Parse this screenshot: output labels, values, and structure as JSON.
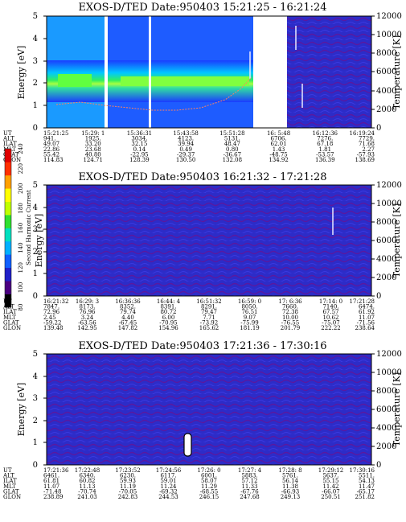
{
  "chart_data": [
    {
      "type": "heatmap",
      "title": "EXOS-D/TED   Date:950403  15:21:25 - 16:21:24",
      "ylabel": "Energy [eV]",
      "y2label": "Temperature [K]",
      "ylim": [
        0,
        5
      ],
      "y2lim": [
        0,
        12000
      ],
      "yticks": [
        "0",
        "1",
        "2",
        "3",
        "4",
        "5"
      ],
      "y2ticks": [
        "0",
        "2000",
        "4000",
        "6000",
        "8000",
        "10000",
        "12000"
      ],
      "band": {
        "center_ev": 2.0,
        "peak_ev_min": 1.4,
        "peak_ev_max": 2.6,
        "note_level_percent": 100
      },
      "data_gaps": [
        [
          "16:01:00",
          "16:07:30"
        ]
      ],
      "table": {
        "rows": [
          {
            "label": "UT",
            "values": [
              "15:21:25",
              "15:29: 1",
              "15:36:31",
              "15:43:58",
              "15:51:28",
              "16: 5:48",
              "16:12:36",
              "16:19:24"
            ]
          },
          {
            "label": "ALT",
            "values": [
              "941.",
              "1925.",
              "3034.",
              "4123.",
              "5131.",
              "6706.",
              "7276.",
              "7729."
            ]
          },
          {
            "label": "ILAT",
            "values": [
              "49.07",
              "33.20",
              "32.15",
              "39.94",
              "48.47",
              "62.01",
              "67.18",
              "71.68"
            ]
          },
          {
            "label": "MLT",
            "values": [
              "22.86",
              "23.68",
              "0.14",
              "0.49",
              "0.80",
              "1.43",
              "1.81",
              "2.27"
            ]
          },
          {
            "label": "GLAT",
            "values": [
              "55.42",
              "40.80",
              "-22.95",
              "-29.37",
              "-36.67",
              "-48.75",
              "-53.57",
              "-57.93"
            ]
          },
          {
            "label": "GLON",
            "values": [
              "114.83",
              "124.71",
              "128.39",
              "130.50",
              "132.08",
              "134.92",
              "136.39",
              "138.69"
            ]
          }
        ]
      }
    },
    {
      "type": "heatmap",
      "title": "EXOS-D/TED   Date:950403  16:21:32 - 17:21:28",
      "ylabel": "Energy [eV]",
      "y2label": "Temperature [K]",
      "ylim": [
        0,
        5
      ],
      "y2lim": [
        0,
        12000
      ],
      "yticks": [
        "0",
        "1",
        "2",
        "3",
        "4",
        "5"
      ],
      "y2ticks": [
        "0",
        "2000",
        "4000",
        "6000",
        "8000",
        "10000",
        "12000"
      ],
      "table": {
        "rows": [
          {
            "label": "UT",
            "values": [
              "16:21:32",
              "16:29: 3",
              "16:36:36",
              "16:44: 4",
              "16:51:32",
              "16:59: 0",
              "17: 6:36",
              "17:14: 0",
              "17:21:28"
            ]
          },
          {
            "label": "ALT",
            "values": [
              "7847.",
              "8173.",
              "8352.",
              "8391.",
              "8291.",
              "8050.",
              "7660.",
              "7140.",
              "6474."
            ]
          },
          {
            "label": "ILAT",
            "values": [
              "72.96",
              "76.96",
              "79.74",
              "80.72",
              "79.47",
              "76.51",
              "72.38",
              "67.57",
              "61.92"
            ]
          },
          {
            "label": "MLT",
            "values": [
              "2.45",
              "3.24",
              "4.40",
              "6.00",
              "7.71",
              "9.07",
              "10.00",
              "10.62",
              "11.07"
            ]
          },
          {
            "label": "GLAT",
            "values": [
              "-59.22",
              "-63.56",
              "-67.45",
              "-70.95",
              "-73.92",
              "-75.99",
              "-76.55",
              "-75.07",
              "-71.56"
            ]
          },
          {
            "label": "GLON",
            "values": [
              "139.48",
              "142.95",
              "147.82",
              "154.96",
              "165.62",
              "181.19",
              "201.79",
              "222.22",
              "238.64"
            ]
          }
        ]
      }
    },
    {
      "type": "heatmap",
      "title": "EXOS-D/TED   Date:950403  17:21:36 - 17:30:16",
      "ylabel": "Energy [eV]",
      "y2label": "Temperature [K]",
      "ylim": [
        0,
        5
      ],
      "y2lim": [
        0,
        12000
      ],
      "yticks": [
        "0",
        "1",
        "2",
        "3",
        "4",
        "5"
      ],
      "y2ticks": [
        "0",
        "2000",
        "4000",
        "6000",
        "8000",
        "10000",
        "12000"
      ],
      "marker": {
        "ut": "17:24:56",
        "ev_min": 0.5,
        "ev_max": 1.4
      },
      "table": {
        "rows": [
          {
            "label": "UT",
            "values": [
              "17:21:36",
              "17:22:48",
              "17:23:52",
              "17:24:56",
              "17:26: 0",
              "17:27: 4",
              "17:28: 8",
              "17:29:12",
              "17:30:16"
            ]
          },
          {
            "label": "ALT",
            "values": [
              "6461.",
              "6340.",
              "6230.",
              "6117.",
              "6001.",
              "5883.",
              "5761.",
              "5637.",
              "5511."
            ]
          },
          {
            "label": "ILAT",
            "values": [
              "61.81",
              "60.82",
              "59.93",
              "59.01",
              "58.07",
              "57.12",
              "56.14",
              "55.15",
              "54.13"
            ]
          },
          {
            "label": "MLT",
            "values": [
              "11.07",
              "11.13",
              "11.19",
              "11.24",
              "11.29",
              "11.33",
              "11.38",
              "11.42",
              "11.47"
            ]
          },
          {
            "label": "GLAT",
            "values": [
              "-71.48",
              "-70.74",
              "-70.05",
              "-69.32",
              "-68.55",
              "-67.76",
              "-66.93",
              "-66.07",
              "-65.17"
            ]
          },
          {
            "label": "GLON",
            "values": [
              "238.89",
              "241.03",
              "242.83",
              "244.53",
              "246.15",
              "247.68",
              "249.13",
              "250.51",
              "251.82"
            ]
          }
        ]
      }
    }
  ],
  "colorbar": {
    "label": "Second Harmonic Current",
    "ticks": [
      "80",
      "100",
      "120",
      "140",
      "160",
      "180",
      "200",
      "220",
      "240"
    ],
    "colors": [
      "#000000",
      "#4a0080",
      "#2020c8",
      "#1060ff",
      "#00b0ff",
      "#00e0c0",
      "#30e030",
      "#c0ff00",
      "#ffff00",
      "#ffa000",
      "#ff3000",
      "#e00000"
    ]
  }
}
